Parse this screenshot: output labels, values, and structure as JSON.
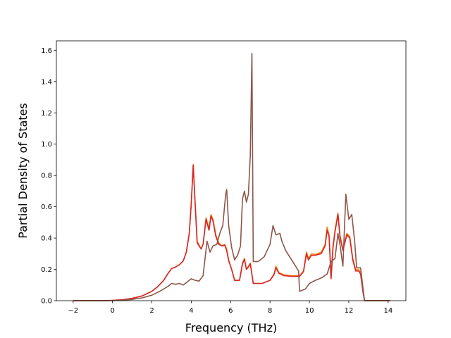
{
  "chart_data": {
    "type": "line",
    "title": "",
    "xlabel": "Frequency (THz)",
    "ylabel": "Partial Density of States",
    "xlim": [
      -2.85,
      14.9
    ],
    "ylim": [
      0.0,
      1.66
    ],
    "xticks": [
      -2,
      0,
      2,
      4,
      6,
      8,
      10,
      12,
      14
    ],
    "yticks": [
      0.0,
      0.2,
      0.4,
      0.6,
      0.8,
      1.0,
      1.2,
      1.4,
      1.6
    ],
    "xtick_labels": [
      "−2",
      "0",
      "2",
      "4",
      "6",
      "8",
      "10",
      "12",
      "14"
    ],
    "ytick_labels": [
      "0.0",
      "0.2",
      "0.4",
      "0.6",
      "0.8",
      "1.0",
      "1.2",
      "1.4",
      "1.6"
    ],
    "grid": false,
    "legend": "none",
    "series": [
      {
        "color": "#ff7f0e",
        "points": [
          [
            -2.0,
            0.0
          ],
          [
            -0.5,
            0.0
          ],
          [
            0.0,
            0.002
          ],
          [
            0.5,
            0.006
          ],
          [
            1.0,
            0.015
          ],
          [
            1.5,
            0.03
          ],
          [
            2.0,
            0.06
          ],
          [
            2.3,
            0.09
          ],
          [
            2.6,
            0.13
          ],
          [
            2.8,
            0.17
          ],
          [
            3.0,
            0.205
          ],
          [
            3.2,
            0.215
          ],
          [
            3.4,
            0.23
          ],
          [
            3.6,
            0.255
          ],
          [
            3.75,
            0.31
          ],
          [
            3.9,
            0.43
          ],
          [
            4.0,
            0.62
          ],
          [
            4.1,
            0.87
          ],
          [
            4.2,
            0.62
          ],
          [
            4.3,
            0.38
          ],
          [
            4.5,
            0.33
          ],
          [
            4.6,
            0.36
          ],
          [
            4.75,
            0.53
          ],
          [
            4.9,
            0.46
          ],
          [
            5.0,
            0.55
          ],
          [
            5.1,
            0.52
          ],
          [
            5.25,
            0.42
          ],
          [
            5.4,
            0.37
          ],
          [
            5.55,
            0.35
          ],
          [
            5.7,
            0.36
          ],
          [
            5.8,
            0.33
          ],
          [
            5.9,
            0.26
          ],
          [
            6.05,
            0.2
          ],
          [
            6.2,
            0.13
          ],
          [
            6.45,
            0.13
          ],
          [
            6.6,
            0.24
          ],
          [
            6.7,
            0.27
          ],
          [
            6.8,
            0.2
          ],
          [
            6.9,
            0.22
          ],
          [
            7.0,
            0.24
          ],
          [
            7.15,
            0.11
          ],
          [
            7.6,
            0.11
          ],
          [
            8.0,
            0.13
          ],
          [
            8.2,
            0.17
          ],
          [
            8.3,
            0.22
          ],
          [
            8.45,
            0.18
          ],
          [
            8.7,
            0.165
          ],
          [
            9.1,
            0.16
          ],
          [
            9.5,
            0.16
          ],
          [
            9.7,
            0.19
          ],
          [
            9.85,
            0.31
          ],
          [
            9.95,
            0.27
          ],
          [
            10.1,
            0.3
          ],
          [
            10.3,
            0.295
          ],
          [
            10.6,
            0.31
          ],
          [
            10.8,
            0.36
          ],
          [
            10.9,
            0.47
          ],
          [
            11.0,
            0.42
          ],
          [
            11.1,
            0.15
          ],
          [
            11.2,
            0.35
          ],
          [
            11.3,
            0.45
          ],
          [
            11.45,
            0.56
          ],
          [
            11.55,
            0.42
          ],
          [
            11.7,
            0.33
          ],
          [
            11.9,
            0.43
          ],
          [
            12.05,
            0.41
          ],
          [
            12.2,
            0.27
          ],
          [
            12.35,
            0.2
          ],
          [
            12.5,
            0.2
          ],
          [
            12.6,
            0.18
          ],
          [
            12.72,
            0.06
          ],
          [
            12.8,
            0.0
          ],
          [
            14.1,
            0.0
          ]
        ]
      },
      {
        "color": "#d62728",
        "points": [
          [
            -2.0,
            0.0
          ],
          [
            -0.5,
            0.0
          ],
          [
            0.0,
            0.002
          ],
          [
            0.5,
            0.006
          ],
          [
            1.0,
            0.015
          ],
          [
            1.5,
            0.03
          ],
          [
            2.0,
            0.06
          ],
          [
            2.3,
            0.09
          ],
          [
            2.6,
            0.13
          ],
          [
            2.8,
            0.17
          ],
          [
            3.0,
            0.205
          ],
          [
            3.2,
            0.215
          ],
          [
            3.4,
            0.23
          ],
          [
            3.6,
            0.255
          ],
          [
            3.75,
            0.31
          ],
          [
            3.9,
            0.43
          ],
          [
            4.0,
            0.62
          ],
          [
            4.1,
            0.865
          ],
          [
            4.2,
            0.61
          ],
          [
            4.3,
            0.37
          ],
          [
            4.5,
            0.33
          ],
          [
            4.6,
            0.36
          ],
          [
            4.75,
            0.52
          ],
          [
            4.9,
            0.45
          ],
          [
            5.0,
            0.54
          ],
          [
            5.1,
            0.51
          ],
          [
            5.25,
            0.41
          ],
          [
            5.4,
            0.36
          ],
          [
            5.55,
            0.35
          ],
          [
            5.7,
            0.355
          ],
          [
            5.8,
            0.32
          ],
          [
            5.9,
            0.255
          ],
          [
            6.05,
            0.2
          ],
          [
            6.2,
            0.13
          ],
          [
            6.45,
            0.13
          ],
          [
            6.6,
            0.235
          ],
          [
            6.7,
            0.265
          ],
          [
            6.8,
            0.2
          ],
          [
            6.9,
            0.215
          ],
          [
            7.0,
            0.235
          ],
          [
            7.15,
            0.11
          ],
          [
            7.6,
            0.11
          ],
          [
            8.0,
            0.13
          ],
          [
            8.2,
            0.165
          ],
          [
            8.3,
            0.21
          ],
          [
            8.45,
            0.175
          ],
          [
            8.7,
            0.16
          ],
          [
            9.1,
            0.155
          ],
          [
            9.5,
            0.155
          ],
          [
            9.7,
            0.185
          ],
          [
            9.85,
            0.3
          ],
          [
            9.95,
            0.26
          ],
          [
            10.1,
            0.29
          ],
          [
            10.3,
            0.29
          ],
          [
            10.6,
            0.3
          ],
          [
            10.8,
            0.35
          ],
          [
            10.9,
            0.45
          ],
          [
            11.0,
            0.41
          ],
          [
            11.1,
            0.14
          ],
          [
            11.2,
            0.34
          ],
          [
            11.3,
            0.44
          ],
          [
            11.45,
            0.55
          ],
          [
            11.55,
            0.41
          ],
          [
            11.7,
            0.32
          ],
          [
            11.9,
            0.42
          ],
          [
            12.05,
            0.4
          ],
          [
            12.2,
            0.26
          ],
          [
            12.35,
            0.19
          ],
          [
            12.5,
            0.19
          ],
          [
            12.6,
            0.17
          ],
          [
            12.72,
            0.055
          ],
          [
            12.8,
            0.0
          ],
          [
            14.1,
            0.0
          ]
        ]
      },
      {
        "color": "#8c564b",
        "points": [
          [
            -2.0,
            0.0
          ],
          [
            -0.5,
            0.0
          ],
          [
            0.0,
            0.001
          ],
          [
            0.5,
            0.003
          ],
          [
            1.0,
            0.008
          ],
          [
            1.5,
            0.018
          ],
          [
            2.0,
            0.035
          ],
          [
            2.4,
            0.06
          ],
          [
            2.8,
            0.09
          ],
          [
            3.0,
            0.11
          ],
          [
            3.2,
            0.105
          ],
          [
            3.4,
            0.11
          ],
          [
            3.6,
            0.1
          ],
          [
            3.8,
            0.12
          ],
          [
            4.0,
            0.14
          ],
          [
            4.2,
            0.13
          ],
          [
            4.4,
            0.125
          ],
          [
            4.6,
            0.16
          ],
          [
            4.7,
            0.27
          ],
          [
            4.8,
            0.38
          ],
          [
            4.95,
            0.31
          ],
          [
            5.1,
            0.35
          ],
          [
            5.3,
            0.36
          ],
          [
            5.45,
            0.43
          ],
          [
            5.6,
            0.48
          ],
          [
            5.75,
            0.68
          ],
          [
            5.8,
            0.71
          ],
          [
            5.9,
            0.48
          ],
          [
            6.05,
            0.34
          ],
          [
            6.2,
            0.26
          ],
          [
            6.35,
            0.29
          ],
          [
            6.5,
            0.35
          ],
          [
            6.6,
            0.65
          ],
          [
            6.7,
            0.7
          ],
          [
            6.8,
            0.63
          ],
          [
            6.9,
            0.68
          ],
          [
            7.0,
            0.93
          ],
          [
            7.08,
            1.58
          ],
          [
            7.15,
            0.25
          ],
          [
            7.4,
            0.25
          ],
          [
            7.7,
            0.28
          ],
          [
            8.0,
            0.36
          ],
          [
            8.15,
            0.48
          ],
          [
            8.3,
            0.42
          ],
          [
            8.5,
            0.43
          ],
          [
            8.6,
            0.38
          ],
          [
            8.8,
            0.32
          ],
          [
            9.1,
            0.26
          ],
          [
            9.3,
            0.22
          ],
          [
            9.45,
            0.19
          ],
          [
            9.5,
            0.06
          ],
          [
            9.8,
            0.075
          ],
          [
            10.0,
            0.11
          ],
          [
            10.3,
            0.13
          ],
          [
            10.6,
            0.145
          ],
          [
            10.9,
            0.17
          ],
          [
            11.1,
            0.25
          ],
          [
            11.3,
            0.27
          ],
          [
            11.45,
            0.43
          ],
          [
            11.55,
            0.36
          ],
          [
            11.7,
            0.22
          ],
          [
            11.85,
            0.68
          ],
          [
            12.0,
            0.52
          ],
          [
            12.15,
            0.55
          ],
          [
            12.3,
            0.38
          ],
          [
            12.4,
            0.21
          ],
          [
            12.6,
            0.21
          ],
          [
            12.72,
            0.08
          ],
          [
            12.8,
            0.0
          ],
          [
            14.1,
            0.0
          ]
        ]
      }
    ]
  }
}
